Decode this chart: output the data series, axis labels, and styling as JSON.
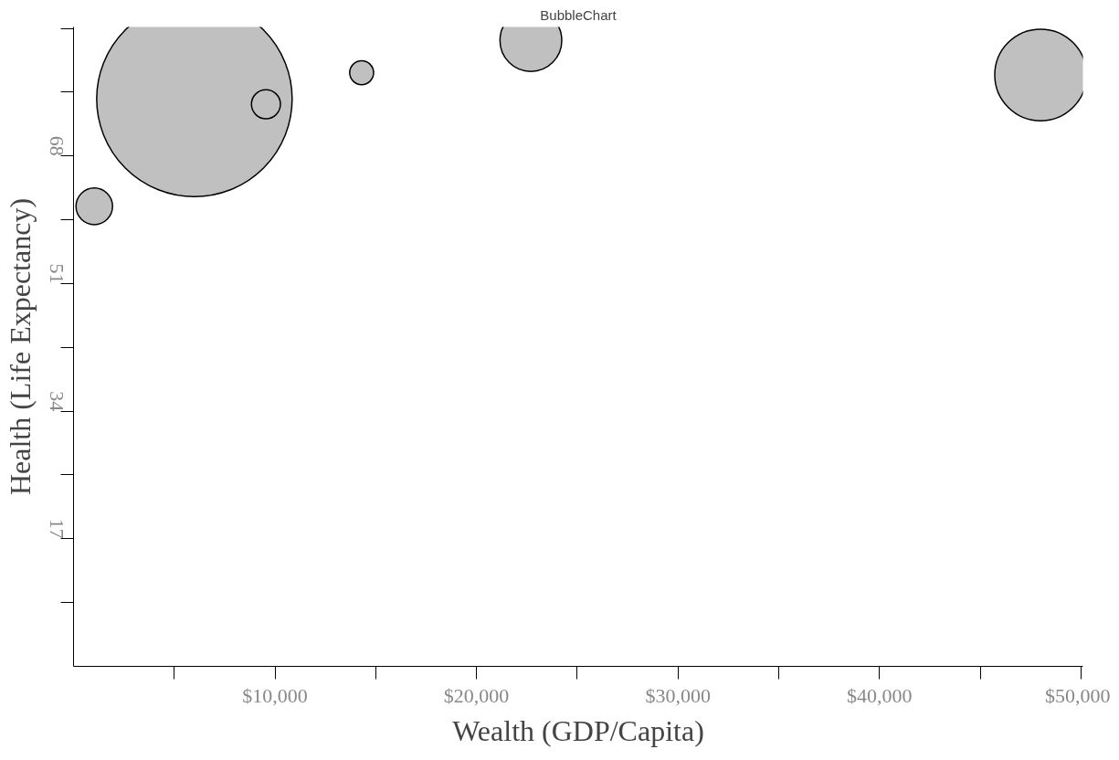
{
  "chart_data": {
    "type": "bubble",
    "title": "BubbleChart",
    "xlabel": "Wealth (GDP/Capita)",
    "ylabel": "Health (Life Expectancy)",
    "x": [
      6000,
      9550,
      14300,
      22700,
      48000,
      1030
    ],
    "values": [
      75.6,
      74.9,
      79.1,
      83.4,
      78.8,
      61.3
    ],
    "sizes": [
      1,
      0.022,
      0.015,
      0.1,
      0.22,
      0.035
    ],
    "color": "#c0c0c0",
    "xlim": [
      0,
      50100
    ],
    "ylim": [
      0,
      85.2
    ],
    "xticks": [
      {
        "value": 5000,
        "label": null
      },
      {
        "value": 10000,
        "label": "$10,000"
      },
      {
        "value": 15000,
        "label": null
      },
      {
        "value": 20000,
        "label": "$20,000"
      },
      {
        "value": 25000,
        "label": null
      },
      {
        "value": 30000,
        "label": "$30,000"
      },
      {
        "value": 35000,
        "label": null
      },
      {
        "value": 40000,
        "label": "$40,000"
      },
      {
        "value": 45000,
        "label": null
      },
      {
        "value": 50000,
        "label": "$50,000"
      }
    ],
    "yticks": [
      {
        "value": 8.5,
        "label": null
      },
      17,
      {
        "value": 25.5,
        "label": null
      },
      34,
      {
        "value": 42.5,
        "label": null
      },
      51,
      {
        "value": 59.5,
        "label": null
      },
      68,
      {
        "value": 76.5,
        "label": null
      },
      {
        "value": 85,
        "label": null
      }
    ],
    "grid": false
  }
}
